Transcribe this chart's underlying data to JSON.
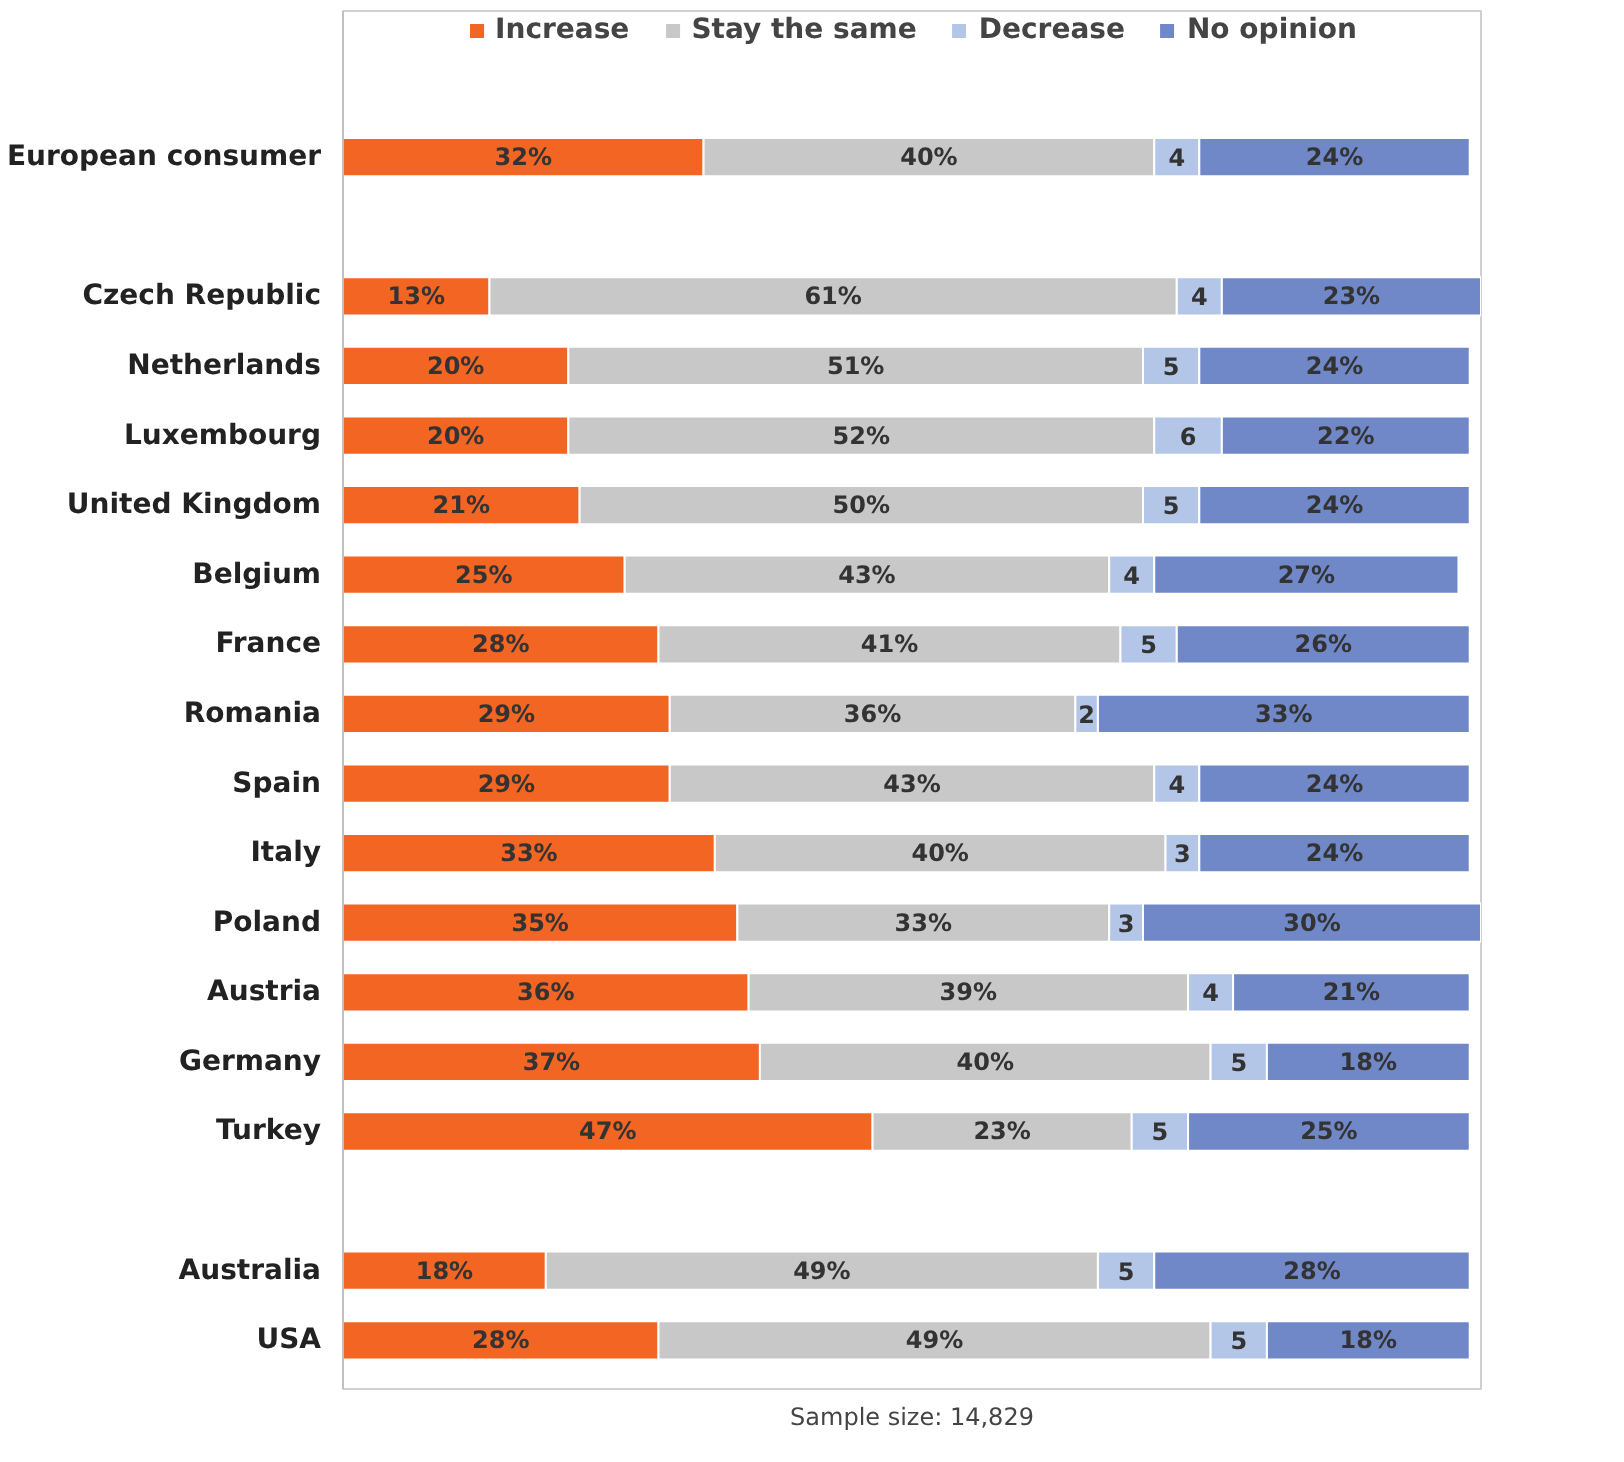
{
  "chart_data": {
    "type": "bar",
    "orientation": "horizontal",
    "stacked": true,
    "legend": "top",
    "grid": false,
    "tick_labels": "y",
    "categories": [
      "European consumer",
      null,
      "Czech Republic",
      "Netherlands",
      "Luxembourg",
      "United Kingdom",
      "Belgium",
      "France",
      "Romania",
      "Spain",
      "Italy",
      "Poland",
      "Austria",
      "Germany",
      "Turkey",
      null,
      "Australia",
      "USA"
    ],
    "series": [
      {
        "name": "Increase",
        "color": "#f26522",
        "values": [
          32,
          null,
          13,
          20,
          20,
          21,
          25,
          28,
          29,
          29,
          33,
          35,
          36,
          37,
          47,
          null,
          18,
          28
        ],
        "value_labels": [
          "32%",
          null,
          "13%",
          "20%",
          "20%",
          "21%",
          "25%",
          "28%",
          "29%",
          "29%",
          "33%",
          "35%",
          "36%",
          "37%",
          "47%",
          null,
          "18%",
          "28%"
        ]
      },
      {
        "name": "Stay the same",
        "color": "#c8c8c8",
        "values": [
          40,
          null,
          61,
          51,
          52,
          50,
          43,
          41,
          36,
          43,
          40,
          33,
          39,
          40,
          23,
          null,
          49,
          49
        ],
        "value_labels": [
          "40%",
          null,
          "61%",
          "51%",
          "52%",
          "50%",
          "43%",
          "41%",
          "36%",
          "43%",
          "40%",
          "33%",
          "39%",
          "40%",
          "23%",
          null,
          "49%",
          "49%"
        ]
      },
      {
        "name": "Decrease",
        "color": "#b4c6e7",
        "values": [
          4,
          null,
          4,
          5,
          6,
          5,
          4,
          5,
          2,
          4,
          3,
          3,
          4,
          5,
          5,
          null,
          5,
          5
        ],
        "value_labels": [
          "4",
          null,
          "4",
          "5",
          "6",
          "5",
          "4",
          "5",
          "2",
          "4",
          "3",
          "3",
          "4",
          "5",
          "5",
          null,
          "5",
          "5"
        ]
      },
      {
        "name": "No opinion",
        "color": "#7088c8",
        "values": [
          24,
          null,
          23,
          24,
          22,
          24,
          27,
          26,
          33,
          24,
          24,
          30,
          21,
          18,
          25,
          null,
          28,
          18
        ],
        "value_labels": [
          "24%",
          null,
          "23%",
          "24%",
          "22%",
          "24%",
          "27%",
          "26%",
          "33%",
          "24%",
          "24%",
          "30%",
          "21%",
          "18%",
          "25%",
          null,
          "28%",
          "18%"
        ]
      }
    ],
    "annotations": [
      "Sample size: 14,829"
    ]
  }
}
